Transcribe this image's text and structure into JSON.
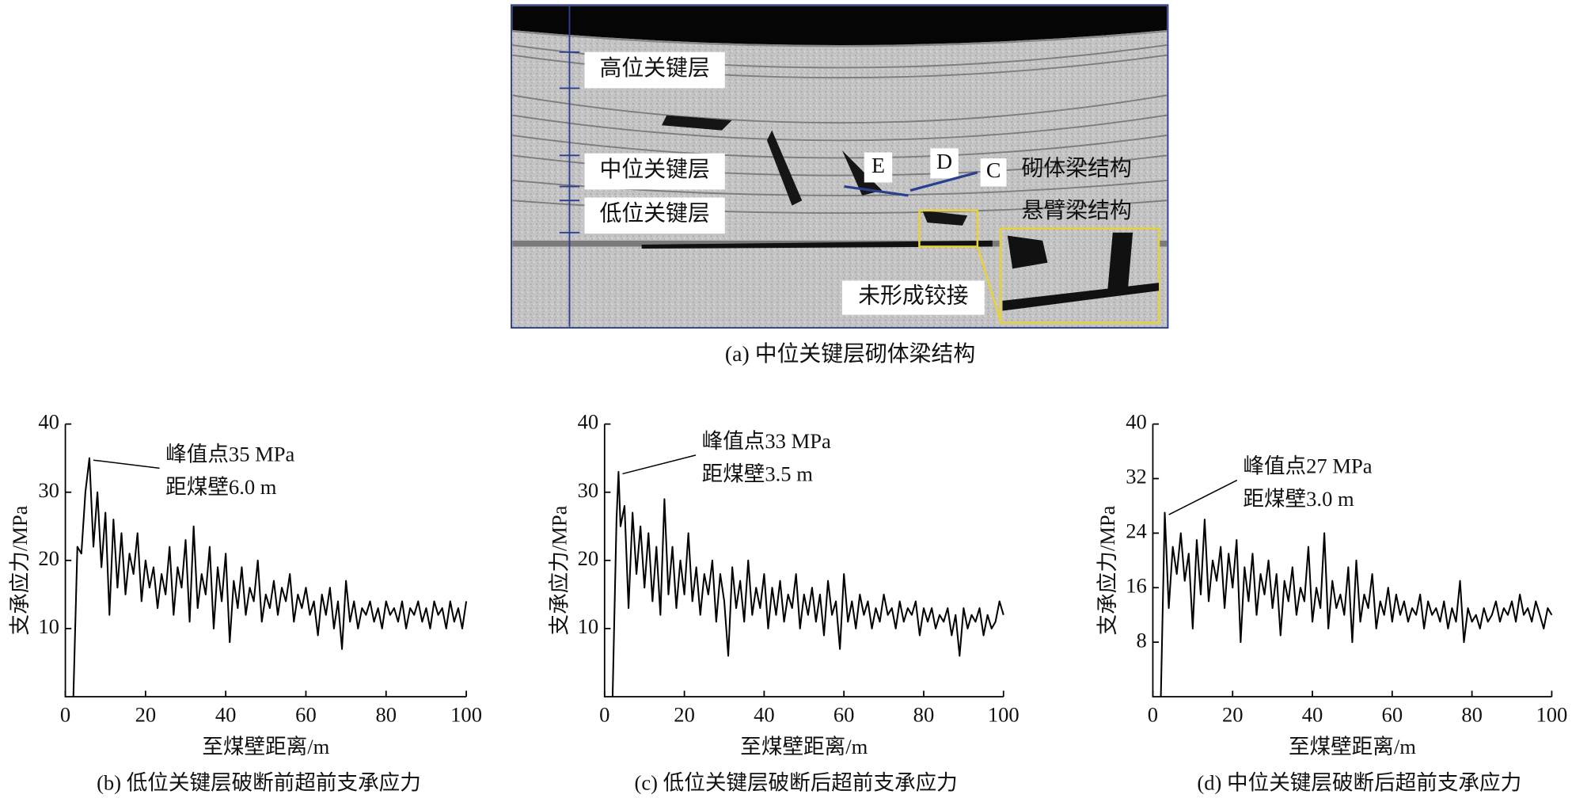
{
  "panel_a": {
    "labels": {
      "high": "高位关键层",
      "mid": "中位关键层",
      "low": "低位关键层",
      "E": "E",
      "D": "D",
      "C": "C",
      "voussoir": "砌体梁结构",
      "cantilever": "悬臂梁结构",
      "unhinged": "未形成铰接"
    },
    "caption": "(a)  中位关键层砌体梁结构"
  },
  "chart_data": [
    {
      "type": "line",
      "caption": "(b)  低位关键层破断前超前支承应力",
      "xlabel": "至煤壁距离/m",
      "ylabel": "支承应力/MPa",
      "annotation": [
        "峰值点35 MPa",
        "距煤壁6.0 m"
      ],
      "color": "#000000",
      "xlim": [
        0,
        100
      ],
      "ylim": [
        0,
        40
      ],
      "xticks": [
        0,
        20,
        40,
        60,
        80,
        100
      ],
      "yticks": [
        10,
        20,
        30,
        40
      ],
      "x": [
        2,
        3,
        4,
        5,
        6,
        7,
        8,
        9,
        10,
        11,
        12,
        13,
        14,
        15,
        16,
        17,
        18,
        19,
        20,
        21,
        22,
        23,
        24,
        25,
        26,
        27,
        28,
        29,
        30,
        31,
        32,
        33,
        34,
        35,
        36,
        37,
        38,
        39,
        40,
        41,
        42,
        43,
        44,
        45,
        46,
        47,
        48,
        49,
        50,
        51,
        52,
        53,
        54,
        55,
        56,
        57,
        58,
        59,
        60,
        61,
        62,
        63,
        64,
        65,
        66,
        67,
        68,
        69,
        70,
        71,
        72,
        73,
        74,
        75,
        76,
        77,
        78,
        79,
        80,
        81,
        82,
        83,
        84,
        85,
        86,
        87,
        88,
        89,
        90,
        91,
        92,
        93,
        94,
        95,
        96,
        97,
        98,
        99,
        100
      ],
      "values": [
        0,
        22,
        21,
        30,
        35,
        22,
        30,
        19,
        27,
        12,
        26,
        16,
        24,
        15,
        21,
        18,
        24,
        14,
        20,
        16,
        19,
        13,
        18,
        15,
        22,
        12,
        19,
        16,
        23,
        11,
        25,
        13,
        18,
        15,
        22,
        10,
        19,
        14,
        21,
        8,
        17,
        13,
        19,
        12,
        16,
        14,
        20,
        11,
        15,
        13,
        17,
        12,
        16,
        14,
        18,
        11,
        15,
        13,
        16,
        12,
        14,
        9,
        15,
        12,
        16,
        10,
        14,
        7,
        17,
        11,
        14,
        10,
        13,
        12,
        14,
        11,
        13,
        10,
        14,
        12,
        13,
        11,
        14,
        10,
        13,
        12,
        14,
        11,
        13,
        10,
        14,
        12,
        13,
        10,
        14,
        11,
        13,
        10,
        14
      ]
    },
    {
      "type": "line",
      "caption": "(c)  低位关键层破断后超前支承应力",
      "xlabel": "至煤壁距离/m",
      "ylabel": "支承应力/MPa",
      "annotation": [
        "峰值点33 MPa",
        "距煤壁3.5 m"
      ],
      "color": "#000000",
      "xlim": [
        0,
        100
      ],
      "ylim": [
        0,
        40
      ],
      "xticks": [
        0,
        20,
        40,
        60,
        80,
        100
      ],
      "yticks": [
        10,
        20,
        30,
        40
      ],
      "x": [
        2,
        3,
        3.5,
        4,
        5,
        6,
        7,
        8,
        9,
        10,
        11,
        12,
        13,
        14,
        15,
        16,
        17,
        18,
        19,
        20,
        21,
        22,
        23,
        24,
        25,
        26,
        27,
        28,
        29,
        30,
        31,
        32,
        33,
        34,
        35,
        36,
        37,
        38,
        39,
        40,
        41,
        42,
        43,
        44,
        45,
        46,
        47,
        48,
        49,
        50,
        51,
        52,
        53,
        54,
        55,
        56,
        57,
        58,
        59,
        60,
        61,
        62,
        63,
        64,
        65,
        66,
        67,
        68,
        69,
        70,
        71,
        72,
        73,
        74,
        75,
        76,
        77,
        78,
        79,
        80,
        81,
        82,
        83,
        84,
        85,
        86,
        87,
        88,
        89,
        90,
        91,
        92,
        93,
        94,
        95,
        96,
        97,
        98,
        99,
        100
      ],
      "values": [
        0,
        26,
        33,
        25,
        28,
        13,
        27,
        18,
        25,
        16,
        24,
        14,
        22,
        12,
        29,
        15,
        22,
        13,
        20,
        15,
        24,
        14,
        19,
        12,
        18,
        15,
        20,
        11,
        18,
        14,
        6,
        19,
        13,
        17,
        11,
        20,
        12,
        16,
        13,
        18,
        10,
        16,
        12,
        17,
        11,
        15,
        13,
        18,
        10,
        15,
        12,
        16,
        11,
        15,
        9,
        17,
        12,
        14,
        7,
        18,
        11,
        14,
        10,
        15,
        12,
        14,
        10,
        13,
        11,
        15,
        12,
        13,
        10,
        14,
        11,
        13,
        12,
        14,
        9,
        13,
        11,
        13,
        10,
        12,
        11,
        13,
        9,
        12,
        6,
        13,
        10,
        12,
        11,
        13,
        9,
        12,
        10,
        11,
        14,
        12
      ]
    },
    {
      "type": "line",
      "caption": "(d)  中位关键层破断后超前支承应力",
      "xlabel": "至煤壁距离/m",
      "ylabel": "支承应力/MPa",
      "annotation": [
        "峰值点27 MPa",
        "距煤壁3.0 m"
      ],
      "color": "#000000",
      "xlim": [
        0,
        100
      ],
      "ylim": [
        0,
        40
      ],
      "xticks": [
        0,
        20,
        40,
        60,
        80,
        100
      ],
      "yticks": [
        8,
        16,
        24,
        32,
        40
      ],
      "x": [
        2,
        3,
        4,
        5,
        6,
        7,
        8,
        9,
        10,
        11,
        12,
        13,
        14,
        15,
        16,
        17,
        18,
        19,
        20,
        21,
        22,
        23,
        24,
        25,
        26,
        27,
        28,
        29,
        30,
        31,
        32,
        33,
        34,
        35,
        36,
        37,
        38,
        39,
        40,
        41,
        42,
        43,
        44,
        45,
        46,
        47,
        48,
        49,
        50,
        51,
        52,
        53,
        54,
        55,
        56,
        57,
        58,
        59,
        60,
        61,
        62,
        63,
        64,
        65,
        66,
        67,
        68,
        69,
        70,
        71,
        72,
        73,
        74,
        75,
        76,
        77,
        78,
        79,
        80,
        81,
        82,
        83,
        84,
        85,
        86,
        87,
        88,
        89,
        90,
        91,
        92,
        93,
        94,
        95,
        96,
        97,
        98,
        99,
        100
      ],
      "values": [
        0,
        27,
        13,
        22,
        18,
        24,
        17,
        21,
        10,
        23,
        15,
        26,
        14,
        20,
        17,
        22,
        13,
        21,
        16,
        23,
        8,
        19,
        14,
        21,
        12,
        18,
        15,
        20,
        13,
        18,
        9,
        17,
        14,
        19,
        12,
        16,
        14,
        22,
        11,
        16,
        13,
        24,
        10,
        17,
        13,
        15,
        12,
        19,
        8,
        20,
        11,
        15,
        13,
        18,
        10,
        14,
        12,
        16,
        11,
        15,
        12,
        14,
        11,
        13,
        12,
        15,
        10,
        14,
        12,
        13,
        11,
        14,
        10,
        13,
        11,
        17,
        8,
        13,
        11,
        12,
        10,
        13,
        11,
        12,
        14,
        11,
        13,
        12,
        14,
        11,
        15,
        12,
        13,
        11,
        14,
        12,
        10,
        13,
        12
      ]
    }
  ]
}
